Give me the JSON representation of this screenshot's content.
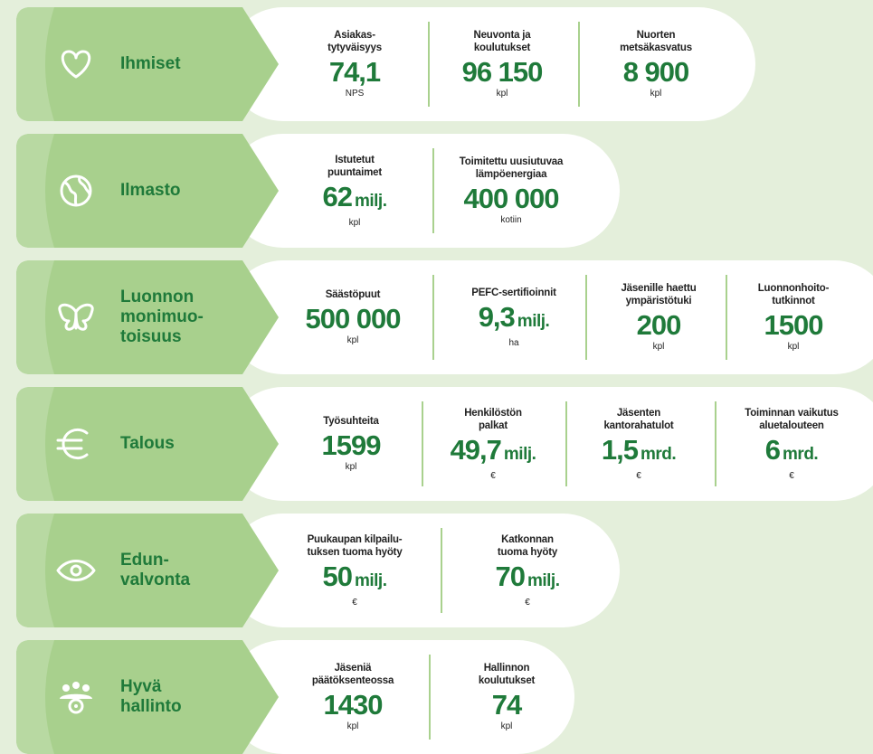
{
  "rows": [
    {
      "label": [
        "Ihmiset"
      ],
      "metrics": [
        {
          "label": [
            "Asiakas-",
            "tytyväisyys"
          ],
          "value": "74,1",
          "unit": "NPS"
        },
        {
          "label": [
            "Neuvonta ja",
            "koulutukset"
          ],
          "value": "96 150",
          "unit": "kpl"
        },
        {
          "label": [
            "Nuorten",
            "metsäkasvatus"
          ],
          "value": "8 900",
          "unit": "kpl"
        }
      ]
    },
    {
      "label": [
        "Ilmasto"
      ],
      "metrics": [
        {
          "label": [
            "Istutetut",
            "puuntaimet"
          ],
          "value": "62",
          "suffix": "milj.",
          "unit": "kpl"
        },
        {
          "label": [
            "Toimitettu uusiutuvaa",
            "lämpöenergiaa"
          ],
          "value": "400 000",
          "unit": "kotiin"
        }
      ]
    },
    {
      "label": [
        "Luonnon",
        "monimuo-",
        "toisuus"
      ],
      "metrics": [
        {
          "label": [
            "Säästöpuut"
          ],
          "value": "500 000",
          "unit": "kpl"
        },
        {
          "label": [
            "PEFC-sertifioinnit"
          ],
          "value": "9,3",
          "suffix": "milj.",
          "unit": "ha"
        },
        {
          "label": [
            "Jäsenille haettu",
            "ympäristötuki"
          ],
          "value": "200",
          "unit": "kpl"
        },
        {
          "label": [
            "Luonnonhoito-",
            "tutkinnot"
          ],
          "value": "1500",
          "unit": "kpl"
        }
      ]
    },
    {
      "label": [
        "Talous"
      ],
      "metrics": [
        {
          "label": [
            "Työsuhteita"
          ],
          "value": "1599",
          "unit": "kpl"
        },
        {
          "label": [
            "Henkilöstön",
            "palkat"
          ],
          "value": "49,7",
          "suffix": "milj.",
          "unit": "€"
        },
        {
          "label": [
            "Jäsenten",
            "kantorahatulot"
          ],
          "value": "1,5",
          "suffix": "mrd.",
          "unit": "€"
        },
        {
          "label": [
            "Toiminnan vaikutus",
            "aluetalouteen"
          ],
          "value": "6",
          "suffix": "mrd.",
          "unit": "€"
        }
      ]
    },
    {
      "label": [
        "Edun-",
        "valvonta"
      ],
      "metrics": [
        {
          "label": [
            "Puukaupan kilpailu-",
            "tuksen tuoma hyöty"
          ],
          "value": "50",
          "suffix": "milj.",
          "unit": "€"
        },
        {
          "label": [
            "Katkonnan",
            "tuoma hyöty"
          ],
          "value": "70",
          "suffix": "milj.",
          "unit": "€"
        }
      ]
    },
    {
      "label": [
        "Hyvä",
        "hallinto"
      ],
      "metrics": [
        {
          "label": [
            "Jäseniä",
            "päätöksenteossa"
          ],
          "value": "1430",
          "unit": "kpl"
        },
        {
          "label": [
            "Hallinnon",
            "koulutukset"
          ],
          "value": "74",
          "unit": "kpl"
        }
      ]
    }
  ]
}
